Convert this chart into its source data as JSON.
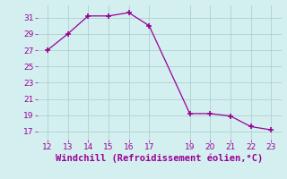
{
  "x": [
    12,
    13,
    14,
    15,
    16,
    17,
    19,
    20,
    21,
    22,
    23
  ],
  "y": [
    27,
    29,
    31.2,
    31.2,
    31.6,
    30.0,
    19.2,
    19.2,
    18.9,
    17.6,
    17.2
  ],
  "line_color": "#990099",
  "marker": "+",
  "marker_size": 4,
  "marker_lw": 1.2,
  "background_color": "#d4efef",
  "grid_color": "#b0d0d0",
  "xlabel": "Windchill (Refroidissement éolien,°C)",
  "xlabel_color": "#990099",
  "xlabel_fontsize": 7.5,
  "tick_color": "#990099",
  "tick_fontsize": 6.5,
  "xlim": [
    11.5,
    23.5
  ],
  "ylim": [
    16.0,
    32.5
  ],
  "yticks": [
    17,
    19,
    21,
    23,
    25,
    27,
    29,
    31
  ],
  "xticks": [
    12,
    13,
    14,
    15,
    16,
    17,
    19,
    20,
    21,
    22,
    23
  ]
}
